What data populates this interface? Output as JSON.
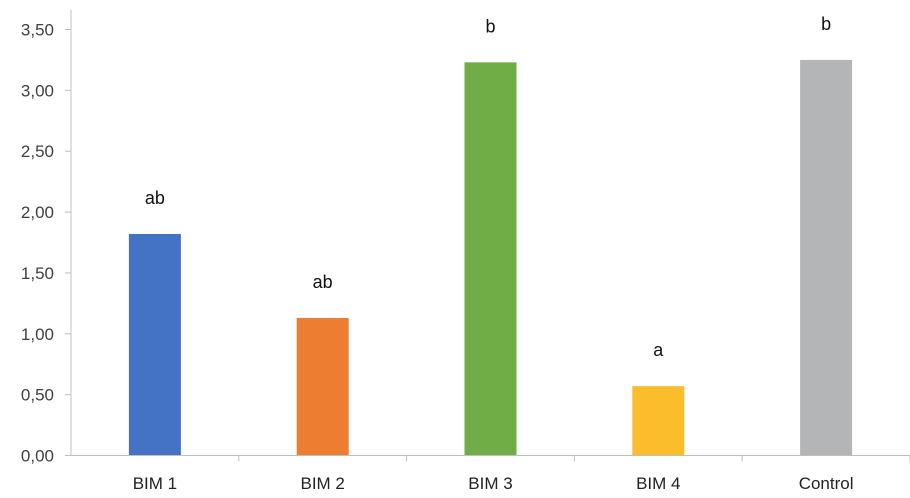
{
  "chart_data": {
    "type": "bar",
    "categories": [
      "BIM 1",
      "BIM 2",
      "BIM 3",
      "BIM 4",
      "Control"
    ],
    "values": [
      1.82,
      1.13,
      3.23,
      0.57,
      3.25
    ],
    "bar_labels": [
      "ab",
      "ab",
      "b",
      "a",
      "b"
    ],
    "colors": [
      "#4472c4",
      "#ed7d31",
      "#70ad47",
      "#fbbd2c",
      "#b4b5b7"
    ],
    "y_ticks": [
      "0,00",
      "0,50",
      "1,00",
      "1,50",
      "2,00",
      "2,50",
      "3,00",
      "3,50"
    ],
    "ylim": [
      0,
      3.5
    ],
    "grid": false,
    "legend": "none",
    "title": "",
    "xlabel": "",
    "ylabel": ""
  }
}
